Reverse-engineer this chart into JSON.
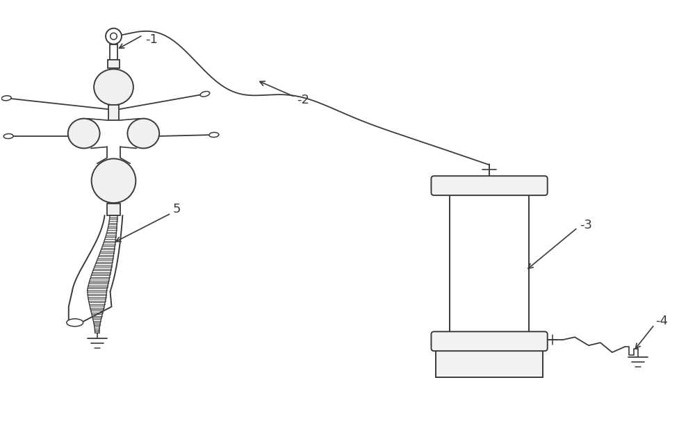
{
  "bg": "#ffffff",
  "lc": "#3a3a3a",
  "lw": 1.5,
  "fig_w": 10.0,
  "fig_h": 6.29,
  "dpi": 100
}
